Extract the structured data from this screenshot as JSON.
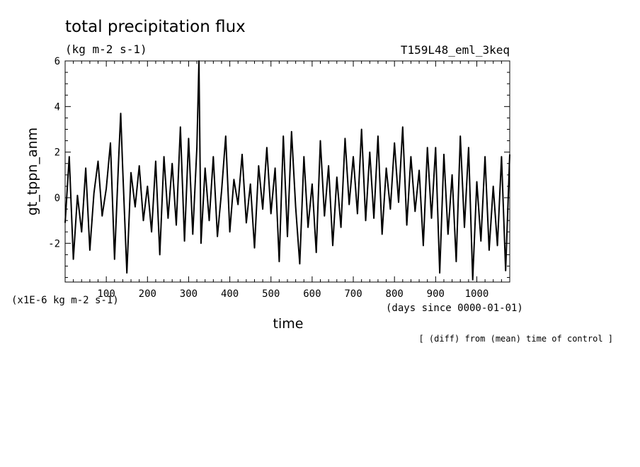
{
  "chart_data": {
    "type": "line",
    "title": "total precipitation flux",
    "units": "(kg m-2 s-1)",
    "experiment": "T159L48_eml_3keq",
    "xlabel": "time",
    "x_units": "(days since 0000-01-01)",
    "ylabel": "gt_tppn_anm",
    "y_scale_note": "(x1E-6 kg m-2 s-1)",
    "footnote": "[ (diff) from (mean) time of control ]",
    "xlim": [
      0,
      1080
    ],
    "ylim": [
      -3.7,
      6
    ],
    "xticks": [
      100,
      200,
      300,
      400,
      500,
      600,
      700,
      800,
      900,
      1000
    ],
    "xtick_labels": [
      "100",
      "200",
      "300",
      "400",
      "500",
      "600",
      "700",
      "800",
      "900",
      "1000"
    ],
    "yticks": [
      -2,
      0,
      2,
      4,
      6
    ],
    "ytick_labels": [
      "-2",
      "0",
      "2",
      "4",
      "6"
    ],
    "line_color": "#000000",
    "series": [
      {
        "x": [
          0,
          10,
          20,
          30,
          40,
          50,
          60,
          70,
          80,
          90,
          100,
          110,
          120,
          130,
          135,
          140,
          150,
          160,
          170,
          180,
          190,
          200,
          210,
          220,
          230,
          240,
          250,
          260,
          270,
          280,
          290,
          300,
          310,
          320,
          325,
          330,
          340,
          350,
          360,
          370,
          380,
          390,
          400,
          410,
          420,
          430,
          440,
          450,
          460,
          470,
          480,
          490,
          500,
          510,
          520,
          530,
          540,
          550,
          560,
          570,
          580,
          590,
          600,
          610,
          620,
          630,
          640,
          650,
          660,
          670,
          680,
          690,
          700,
          710,
          720,
          730,
          740,
          750,
          760,
          770,
          780,
          790,
          800,
          810,
          820,
          830,
          840,
          850,
          860,
          870,
          880,
          890,
          900,
          910,
          920,
          930,
          940,
          950,
          960,
          970,
          980,
          990,
          1000,
          1010,
          1020,
          1030,
          1040,
          1050,
          1060,
          1070,
          1080
        ],
        "y": [
          -1.1,
          1.8,
          -2.7,
          0.1,
          -1.5,
          1.3,
          -2.3,
          0.2,
          1.6,
          -0.8,
          0.4,
          2.4,
          -2.7,
          1.7,
          3.7,
          1.2,
          -3.3,
          1.1,
          -0.4,
          1.4,
          -1.0,
          0.5,
          -1.5,
          1.6,
          -2.5,
          1.8,
          -0.9,
          1.5,
          -1.2,
          3.1,
          -1.9,
          2.6,
          -1.6,
          2.2,
          6.0,
          -2.0,
          1.3,
          -1.0,
          1.8,
          -1.7,
          0.3,
          2.7,
          -1.5,
          0.8,
          -0.3,
          1.9,
          -1.1,
          0.6,
          -2.2,
          1.4,
          -0.5,
          2.2,
          -0.7,
          1.3,
          -2.8,
          2.7,
          -1.7,
          2.9,
          -0.4,
          -2.9,
          1.8,
          -1.3,
          0.6,
          -2.4,
          2.5,
          -0.8,
          1.4,
          -2.1,
          0.9,
          -1.3,
          2.6,
          -0.3,
          1.8,
          -0.7,
          3.0,
          -1.0,
          2.0,
          -0.9,
          2.7,
          -1.6,
          1.3,
          -0.5,
          2.4,
          -0.2,
          3.1,
          -1.2,
          1.8,
          -0.6,
          1.2,
          -2.1,
          2.2,
          -0.9,
          2.2,
          -3.3,
          1.9,
          -1.6,
          1.0,
          -2.8,
          2.7,
          -1.3,
          2.2,
          -3.6,
          0.7,
          -1.9,
          1.8,
          -2.3,
          0.5,
          -2.1,
          1.8,
          -3.2,
          1.9
        ]
      }
    ]
  }
}
